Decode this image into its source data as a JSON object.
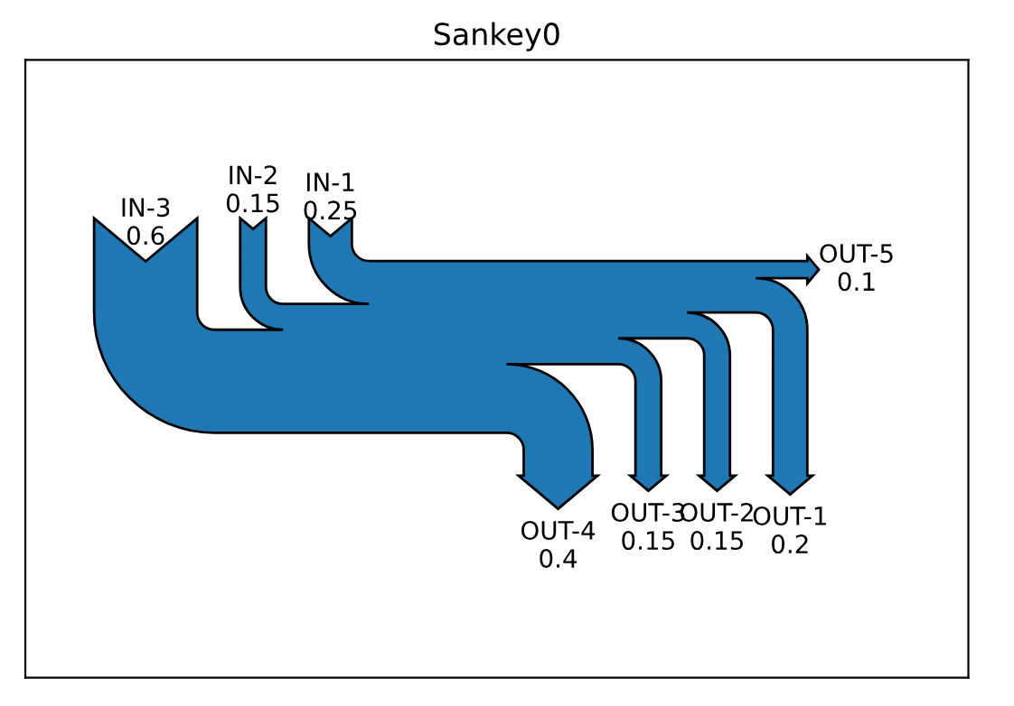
{
  "chart_data": {
    "type": "other",
    "title": "Sankey0",
    "color": "#1f77b4",
    "categories": [
      "IN-1",
      "IN-2",
      "IN-3",
      "OUT-1",
      "OUT-2",
      "OUT-3",
      "OUT-4",
      "OUT-5"
    ],
    "series": [
      {
        "values": [
          0.25,
          0.15,
          0.6,
          null,
          null,
          null,
          null,
          null
        ]
      },
      {
        "values": [
          null,
          null,
          null,
          0.2,
          0.15,
          0.15,
          0.4,
          0.1
        ]
      }
    ],
    "data_labels": true
  }
}
